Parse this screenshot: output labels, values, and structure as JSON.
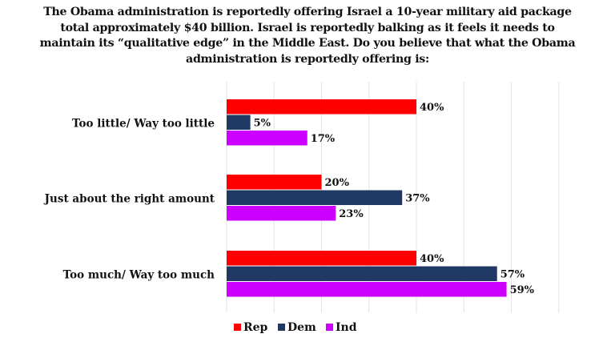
{
  "chart_data": {
    "type": "bar",
    "orientation": "horizontal",
    "title": "The Obama administration is reportedly offering Israel a 10-year military aid package total approximately $40 billion. Israel is reportedly balking as it feels it needs to maintain its “qualitative edge” in the Middle East. Do you believe that what the Obama administration is reportedly offering is:",
    "categories": [
      "Too little/ Way too little",
      "Just about the right amount",
      "Too much/ Way too much"
    ],
    "series": [
      {
        "name": "Rep",
        "color": "#ff0000",
        "values": [
          40,
          20,
          40
        ],
        "labels": [
          "40%",
          "20%",
          "40%"
        ]
      },
      {
        "name": "Dem",
        "color": "#203864",
        "values": [
          5,
          37,
          57
        ],
        "labels": [
          "5%",
          "37%",
          "57%"
        ]
      },
      {
        "name": "Ind",
        "color": "#cc00ff",
        "values": [
          17,
          23,
          59
        ],
        "labels": [
          "17%",
          "23%",
          "59%"
        ]
      }
    ],
    "xlim": [
      0,
      70
    ],
    "grid": true,
    "legend": "bottom"
  }
}
